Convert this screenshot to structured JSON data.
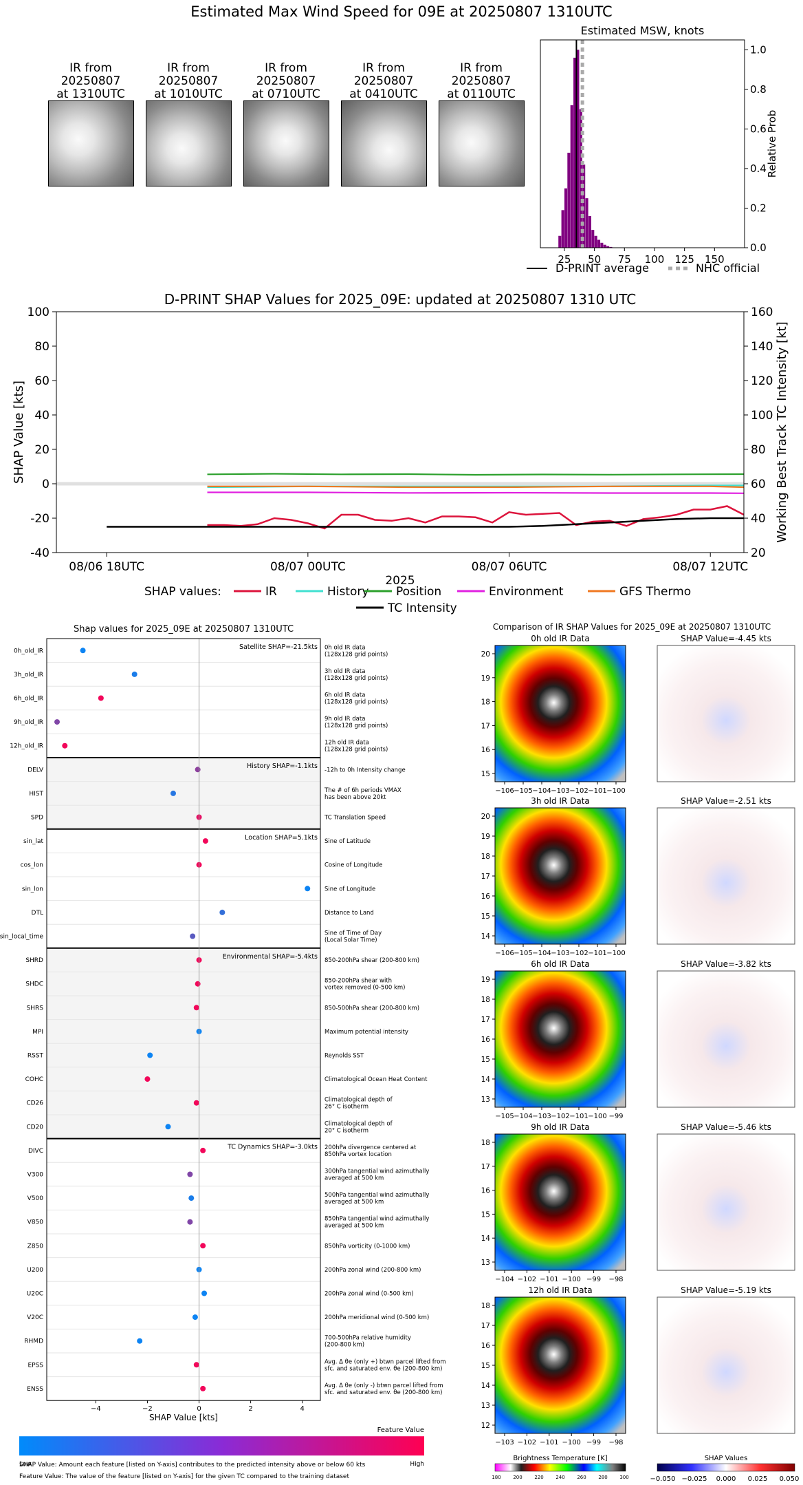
{
  "page_title": "Estimated Max Wind Speed for 09E at 20250807 1310UTC",
  "ir_thumbnails": [
    {
      "label_line1": "IR from",
      "label_line2": "20250807",
      "label_line3": "at 1310UTC"
    },
    {
      "label_line1": "IR from",
      "label_line2": "20250807",
      "label_line3": "at 1010UTC"
    },
    {
      "label_line1": "IR from",
      "label_line2": "20250807",
      "label_line3": "at 0710UTC"
    },
    {
      "label_line1": "IR from",
      "label_line2": "20250807",
      "label_line3": "at 0410UTC"
    },
    {
      "label_line1": "IR from",
      "label_line2": "20250807",
      "label_line3": "at 0110UTC"
    }
  ],
  "colors": {
    "IR": "#dc143c",
    "History": "#40e0d0",
    "Position": "#2ca02c",
    "Environment": "#e020e0",
    "GFS Thermo": "#f07820",
    "TC Intensity": "#000000",
    "histogram": "#800080",
    "nhc": "#aaaaaa",
    "feature_low": "#008bfb",
    "feature_high": "#ff0052"
  },
  "chart_data": [
    {
      "type": "bar",
      "title": "Estimated MSW, knots",
      "ylabel": "Relative Prob",
      "xlim": [
        5,
        175
      ],
      "ylim": [
        0,
        1.05
      ],
      "xticks": [
        25,
        50,
        75,
        100,
        125,
        150
      ],
      "yticks": [
        "0.0",
        "0.2",
        "0.4",
        "0.6",
        "0.8",
        "1.0"
      ],
      "bin_width": 2.5,
      "bins": [
        [
          20,
          0.06
        ],
        [
          22.5,
          0.19
        ],
        [
          25,
          0.3
        ],
        [
          27.5,
          0.48
        ],
        [
          30,
          0.72
        ],
        [
          32.5,
          0.96
        ],
        [
          35,
          1.0
        ],
        [
          37.5,
          0.7
        ],
        [
          40,
          0.42
        ],
        [
          42.5,
          0.25
        ],
        [
          45,
          0.16
        ],
        [
          47.5,
          0.09
        ],
        [
          50,
          0.06
        ],
        [
          52.5,
          0.04
        ],
        [
          55,
          0.025
        ],
        [
          57.5,
          0.015
        ],
        [
          60,
          0.008
        ],
        [
          62.5,
          0.004
        ]
      ],
      "dprint_average": 35,
      "nhc_official": 40,
      "legend": [
        "D-PRINT average",
        "NHC official"
      ]
    },
    {
      "type": "line",
      "title": "D-PRINT SHAP Values for 2025_09E: updated at 20250807 1310 UTC",
      "xlabel": "2025",
      "ylabel": "SHAP Value [kts]",
      "y2label": "Working Best Track TC Intensity [kt]",
      "ylim": [
        -40,
        100
      ],
      "y2lim": [
        20,
        160
      ],
      "yticks": [
        -40,
        -20,
        0,
        20,
        40,
        60,
        80,
        100
      ],
      "y2ticks": [
        20,
        40,
        60,
        80,
        100,
        120,
        140,
        160
      ],
      "xlim_hours": [
        -1.5,
        19
      ],
      "xticks": [
        {
          "label": "08/06 18UTC",
          "h": 0
        },
        {
          "label": "08/07 00UTC",
          "h": 6
        },
        {
          "label": "08/07 06UTC",
          "h": 12
        },
        {
          "label": "08/07 12UTC",
          "h": 18
        }
      ],
      "legend_title": "SHAP values:",
      "series": [
        {
          "name": "IR",
          "h": [
            3,
            3.5,
            4,
            4.5,
            5,
            5.5,
            6,
            6.5,
            7,
            7.5,
            8,
            8.5,
            9,
            9.5,
            10,
            10.5,
            11,
            11.5,
            12,
            12.5,
            13,
            13.5,
            14,
            14.5,
            15,
            15.5,
            16,
            16.5,
            17,
            17.5,
            18,
            18.5,
            19
          ],
          "values": [
            -24,
            -24,
            -24.5,
            -23.5,
            -20,
            -21,
            -23,
            -26,
            -18,
            -18,
            -21,
            -21.5,
            -20,
            -22.5,
            -19,
            -19,
            -19.5,
            -22.5,
            -16.5,
            -18,
            -17.5,
            -17,
            -24,
            -22,
            -21.5,
            -24.5,
            -20.5,
            -19.5,
            -18,
            -15,
            -15,
            -13,
            -18
          ]
        },
        {
          "name": "History",
          "h": [
            3,
            6,
            9,
            12,
            15,
            18,
            19
          ],
          "values": [
            -2,
            -1.5,
            -1.5,
            -1.5,
            -1.5,
            -1,
            -1
          ]
        },
        {
          "name": "Position",
          "h": [
            3,
            5,
            7,
            9,
            11,
            13,
            15,
            17,
            19
          ],
          "values": [
            5.5,
            5.8,
            5.5,
            5.6,
            5.2,
            5.4,
            5.3,
            5.5,
            5.6
          ]
        },
        {
          "name": "Environment",
          "h": [
            3,
            6,
            9,
            12,
            15,
            18,
            19
          ],
          "values": [
            -5,
            -5,
            -5.3,
            -5.2,
            -5.4,
            -5.4,
            -5.5
          ]
        },
        {
          "name": "GFS Thermo",
          "h": [
            3,
            6,
            9,
            12,
            15,
            18,
            19
          ],
          "values": [
            -1.5,
            -1.5,
            -2,
            -2,
            -1.5,
            -1.5,
            -2
          ]
        },
        {
          "name": "TC Intensity",
          "axis": "right",
          "h": [
            0,
            3,
            6,
            9,
            12,
            13,
            14,
            15,
            16,
            17,
            18,
            19
          ],
          "values": [
            35,
            35,
            35,
            35,
            35,
            35.5,
            36.5,
            37.5,
            38.5,
            39.5,
            40,
            40
          ]
        }
      ]
    },
    {
      "type": "scatter",
      "title": "Shap values for 2025_09E at 20250807 1310UTC",
      "xlabel": "SHAP Value [kts]",
      "xlim": [
        -5.9,
        4.7
      ],
      "xticks": [
        -4,
        -2,
        0,
        2,
        4
      ],
      "colorbar_title": "Feature Value",
      "colorbar_low": "Low",
      "colorbar_high": "High",
      "groups": [
        {
          "title": "Satellite SHAP=-21.5kts",
          "shaded": false,
          "features": [
            {
              "name": "0h_old_IR",
              "desc": [
                "0h old IR data",
                "(128x128 grid points)"
              ],
              "shap": -4.5,
              "value": 0.05
            },
            {
              "name": "3h_old_IR",
              "desc": [
                "3h old IR data",
                "(128x128 grid points)"
              ],
              "shap": -2.5,
              "value": 0.1
            },
            {
              "name": "6h_old_IR",
              "desc": [
                "6h old IR data",
                "(128x128 grid points)"
              ],
              "shap": -3.8,
              "value": 0.95
            },
            {
              "name": "9h_old_IR",
              "desc": [
                "9h old IR data",
                "(128x128 grid points)"
              ],
              "shap": -5.5,
              "value": 0.5
            },
            {
              "name": "12h_old_IR",
              "desc": [
                "12h old IR data",
                "(128x128 grid points)"
              ],
              "shap": -5.2,
              "value": 0.95
            }
          ]
        },
        {
          "title": "History SHAP=-1.1kts",
          "shaded": true,
          "features": [
            {
              "name": "DELV",
              "desc": [
                "-12h to 0h Intensity change"
              ],
              "shap": -0.05,
              "value": 0.55
            },
            {
              "name": "HIST",
              "desc": [
                "The # of 6h periods VMAX",
                "has been above 20kt"
              ],
              "shap": -1.0,
              "value": 0.15
            },
            {
              "name": "SPD",
              "desc": [
                "TC Translation Speed"
              ],
              "shap": 0.0,
              "value": 0.9
            }
          ]
        },
        {
          "title": "Location SHAP=5.1kts",
          "shaded": false,
          "features": [
            {
              "name": "sin_lat",
              "desc": [
                "Sine of Latitude"
              ],
              "shap": 0.25,
              "value": 0.95
            },
            {
              "name": "cos_lon",
              "desc": [
                "Cosine of Longitude"
              ],
              "shap": 0.0,
              "value": 0.95
            },
            {
              "name": "sin_lon",
              "desc": [
                "Sine of Longitude"
              ],
              "shap": 4.2,
              "value": 0.05
            },
            {
              "name": "DTL",
              "desc": [
                "Distance to Land"
              ],
              "shap": 0.9,
              "value": 0.2
            },
            {
              "name": "sin_local_time",
              "desc": [
                "Sine of Time of Day",
                "(Local Solar Time)"
              ],
              "shap": -0.25,
              "value": 0.35
            }
          ]
        },
        {
          "title": "Environmental SHAP=-5.4kts",
          "shaded": true,
          "features": [
            {
              "name": "SHRD",
              "desc": [
                "850-200hPa shear (200-800 km)"
              ],
              "shap": 0.0,
              "value": 0.95
            },
            {
              "name": "SHDC",
              "desc": [
                "850-200hPa shear with",
                "vortex removed (0-500 km)"
              ],
              "shap": -0.05,
              "value": 0.95
            },
            {
              "name": "SHRS",
              "desc": [
                "850-500hPa shear (200-800 km)"
              ],
              "shap": -0.1,
              "value": 0.95
            },
            {
              "name": "MPI",
              "desc": [
                "Maximum potential intensity"
              ],
              "shap": 0.0,
              "value": 0.05
            },
            {
              "name": "RSST",
              "desc": [
                "Reynolds SST"
              ],
              "shap": -1.9,
              "value": 0.05
            },
            {
              "name": "COHC",
              "desc": [
                "Climatological Ocean Heat Content"
              ],
              "shap": -2.0,
              "value": 0.95
            },
            {
              "name": "CD26",
              "desc": [
                "Climatological depth of",
                "26° C isotherm"
              ],
              "shap": -0.1,
              "value": 0.95
            },
            {
              "name": "CD20",
              "desc": [
                "Climatological depth of",
                "20° C isotherm"
              ],
              "shap": -1.2,
              "value": 0.05
            }
          ]
        },
        {
          "title": "TC Dynamics SHAP=-3.0kts",
          "shaded": false,
          "features": [
            {
              "name": "DIVC",
              "desc": [
                "200hPa divergence centered at",
                "850hPa vortex location"
              ],
              "shap": 0.15,
              "value": 0.95
            },
            {
              "name": "V300",
              "desc": [
                "300hPa tangential wind azimuthally",
                "averaged at 500 km"
              ],
              "shap": -0.35,
              "value": 0.5
            },
            {
              "name": "V500",
              "desc": [
                "500hPa tangential wind azimuthally",
                "averaged at 500 km"
              ],
              "shap": -0.3,
              "value": 0.1
            },
            {
              "name": "V850",
              "desc": [
                "850hPa tangential wind azimuthally",
                "averaged at 500 km"
              ],
              "shap": -0.35,
              "value": 0.5
            },
            {
              "name": "Z850",
              "desc": [
                "850hPa vorticity (0-1000 km)"
              ],
              "shap": 0.15,
              "value": 0.95
            },
            {
              "name": "U200",
              "desc": [
                "200hPa zonal wind (200-800 km)"
              ],
              "shap": 0.0,
              "value": 0.05
            },
            {
              "name": "U20C",
              "desc": [
                "200hPa zonal wind (0-500 km)"
              ],
              "shap": 0.2,
              "value": 0.05
            },
            {
              "name": "V20C",
              "desc": [
                "200hPa meridional wind (0-500 km)"
              ],
              "shap": -0.15,
              "value": 0.05
            },
            {
              "name": "RHMD",
              "desc": [
                "700-500hPa relative humidity",
                "(200-800 km)"
              ],
              "shap": -2.3,
              "value": 0.05
            },
            {
              "name": "EPSS",
              "desc": [
                "Avg. Δ θe (only +) btwn parcel lifted from",
                "sfc. and saturated env. θe (200-800 km)"
              ],
              "shap": -0.1,
              "value": 0.95
            },
            {
              "name": "ENSS",
              "desc": [
                "Avg. Δ θe (only -) btwn parcel lifted from",
                "sfc. and saturated env. θe (200-800 km)"
              ],
              "shap": 0.15,
              "value": 0.95
            }
          ]
        }
      ]
    },
    {
      "type": "heatmap",
      "title": "Comparison of IR SHAP Values for 2025_09E at 20250807 1310UTC",
      "panels": [
        {
          "ir_title": "0h old IR Data",
          "shap_title": "SHAP Value=-4.45 kts",
          "yticks": [
            "20",
            "19",
            "18",
            "17",
            "16",
            "15"
          ],
          "xticks": [
            "−106",
            "−105",
            "−104",
            "−103",
            "−102",
            "−101",
            "−100"
          ]
        },
        {
          "ir_title": "3h old IR Data",
          "shap_title": "SHAP Value=-2.51 kts",
          "yticks": [
            "20",
            "19",
            "18",
            "17",
            "16",
            "15",
            "14"
          ],
          "xticks": [
            "−106",
            "−105",
            "−104",
            "−103",
            "−102",
            "−101",
            "−100"
          ]
        },
        {
          "ir_title": "6h old IR Data",
          "shap_title": "SHAP Value=-3.82 kts",
          "yticks": [
            "19",
            "18",
            "17",
            "16",
            "15",
            "14",
            "13"
          ],
          "xticks": [
            "−105",
            "−104",
            "−103",
            "−102",
            "−101",
            "−100",
            "−99"
          ]
        },
        {
          "ir_title": "9h old IR Data",
          "shap_title": "SHAP Value=-5.46 kts",
          "yticks": [
            "18",
            "17",
            "16",
            "15",
            "14",
            "13"
          ],
          "xticks": [
            "−104",
            "−102",
            "−101",
            "−100",
            "−99",
            "−98"
          ]
        },
        {
          "ir_title": "12h old IR Data",
          "shap_title": "SHAP Value=-5.19 kts",
          "yticks": [
            "18",
            "17",
            "16",
            "15",
            "14",
            "13",
            "12"
          ],
          "xticks": [
            "−103",
            "−102",
            "−101",
            "−100",
            "−99",
            "−98"
          ]
        }
      ],
      "bt_colorbar_title": "Brightness Temperature [K]",
      "bt_ticks": [
        "180",
        "200",
        "220",
        "240",
        "260",
        "280",
        "300"
      ],
      "shap_colorbar_title": "SHAP Values",
      "shap_ticks": [
        "−0.050",
        "−0.025",
        "0.000",
        "0.025",
        "0.050"
      ]
    }
  ],
  "footnotes": [
    "SHAP Value: Amount each feature [listed on Y-axis] contributes to the predicted intensity above or below 60 kts",
    "Feature Value: The value of the feature [listed on Y-axis] for the given TC compared to the training dataset"
  ]
}
